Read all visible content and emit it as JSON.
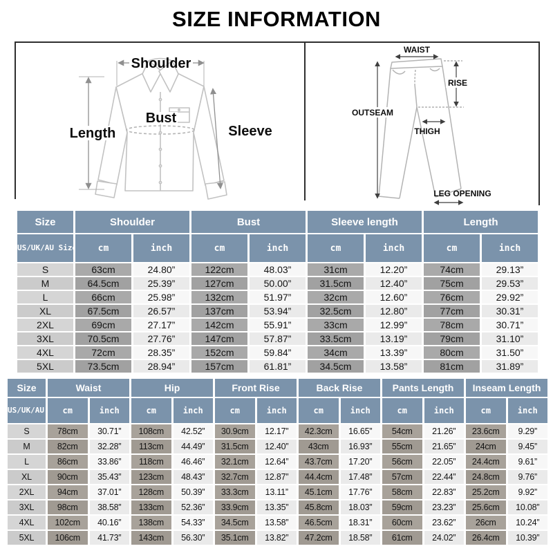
{
  "title": "SIZE INFORMATION",
  "colors": {
    "header_bg": "#7b93ab",
    "cm_cell_gray": "#a9a9a9",
    "cm_cell_taupe": "#a8a29a",
    "size_cell_gray": "#d5d5d5",
    "inch_cell_light": "#f7f7f7",
    "garment_outline": "#c2c2c2",
    "arrow_gray": "#8f8f8f",
    "arrow_dark": "#3f3f3f"
  },
  "diagram": {
    "shirt": {
      "shoulder": "Shoulder",
      "length": "Length",
      "bust": "Bust",
      "sleeve": "Sleeve"
    },
    "pants": {
      "waist": "WAIST",
      "rise": "RISE",
      "outseam": "OUTSEAM",
      "thigh": "THIGH",
      "leg_opening": "LEG OPENING"
    }
  },
  "tables": {
    "top": {
      "groups": [
        "Size",
        "Shoulder",
        "Bust",
        "Sleeve length",
        "Length"
      ],
      "size_header": "US/UK/AU\nSize",
      "unit_labels": [
        "cm",
        "inch"
      ],
      "rows": [
        {
          "size": "S",
          "values": [
            "63cm",
            "24.80”",
            "122cm",
            "48.03”",
            "31cm",
            "12.20”",
            "74cm",
            "29.13”"
          ]
        },
        {
          "size": "M",
          "values": [
            "64.5cm",
            "25.39”",
            "127cm",
            "50.00”",
            "31.5cm",
            "12.40”",
            "75cm",
            "29.53”"
          ]
        },
        {
          "size": "L",
          "values": [
            "66cm",
            "25.98”",
            "132cm",
            "51.97”",
            "32cm",
            "12.60”",
            "76cm",
            "29.92”"
          ]
        },
        {
          "size": "XL",
          "values": [
            "67.5cm",
            "26.57”",
            "137cm",
            "53.94”",
            "32.5cm",
            "12.80”",
            "77cm",
            "30.31”"
          ]
        },
        {
          "size": "2XL",
          "values": [
            "69cm",
            "27.17”",
            "142cm",
            "55.91”",
            "33cm",
            "12.99”",
            "78cm",
            "30.71”"
          ]
        },
        {
          "size": "3XL",
          "values": [
            "70.5cm",
            "27.76”",
            "147cm",
            "57.87”",
            "33.5cm",
            "13.19”",
            "79cm",
            "31.10”"
          ]
        },
        {
          "size": "4XL",
          "values": [
            "72cm",
            "28.35”",
            "152cm",
            "59.84”",
            "34cm",
            "13.39”",
            "80cm",
            "31.50”"
          ]
        },
        {
          "size": "5XL",
          "values": [
            "73.5cm",
            "28.94”",
            "157cm",
            "61.81”",
            "34.5cm",
            "13.58”",
            "81cm",
            "31.89”"
          ]
        }
      ]
    },
    "bottom": {
      "groups": [
        "Size",
        "Waist",
        "Hip",
        "Front Rise",
        "Back Rise",
        "Pants Length",
        "Inseam Length"
      ],
      "size_header": "US/UK/AU\nSize",
      "unit_labels": [
        "cm",
        "inch"
      ],
      "rows": [
        {
          "size": "S",
          "values": [
            "78cm",
            "30.71”",
            "108cm",
            "42.52”",
            "30.9cm",
            "12.17”",
            "42.3cm",
            "16.65”",
            "54cm",
            "21.26”",
            "23.6cm",
            "9.29”"
          ]
        },
        {
          "size": "M",
          "values": [
            "82cm",
            "32.28”",
            "113cm",
            "44.49”",
            "31.5cm",
            "12.40”",
            "43cm",
            "16.93”",
            "55cm",
            "21.65”",
            "24cm",
            "9.45”"
          ]
        },
        {
          "size": "L",
          "values": [
            "86cm",
            "33.86”",
            "118cm",
            "46.46”",
            "32.1cm",
            "12.64”",
            "43.7cm",
            "17.20”",
            "56cm",
            "22.05”",
            "24.4cm",
            "9.61”"
          ]
        },
        {
          "size": "XL",
          "values": [
            "90cm",
            "35.43”",
            "123cm",
            "48.43”",
            "32.7cm",
            "12.87”",
            "44.4cm",
            "17.48”",
            "57cm",
            "22.44”",
            "24.8cm",
            "9.76”"
          ]
        },
        {
          "size": "2XL",
          "values": [
            "94cm",
            "37.01”",
            "128cm",
            "50.39”",
            "33.3cm",
            "13.11”",
            "45.1cm",
            "17.76”",
            "58cm",
            "22.83”",
            "25.2cm",
            "9.92”"
          ]
        },
        {
          "size": "3XL",
          "values": [
            "98cm",
            "38.58”",
            "133cm",
            "52.36”",
            "33.9cm",
            "13.35”",
            "45.8cm",
            "18.03”",
            "59cm",
            "23.23”",
            "25.6cm",
            "10.08”"
          ]
        },
        {
          "size": "4XL",
          "values": [
            "102cm",
            "40.16”",
            "138cm",
            "54.33”",
            "34.5cm",
            "13.58”",
            "46.5cm",
            "18.31”",
            "60cm",
            "23.62”",
            "26cm",
            "10.24”"
          ]
        },
        {
          "size": "5XL",
          "values": [
            "106cm",
            "41.73”",
            "143cm",
            "56.30”",
            "35.1cm",
            "13.82”",
            "47.2cm",
            "18.58”",
            "61cm",
            "24.02”",
            "26.4cm",
            "10.39”"
          ]
        }
      ]
    }
  }
}
